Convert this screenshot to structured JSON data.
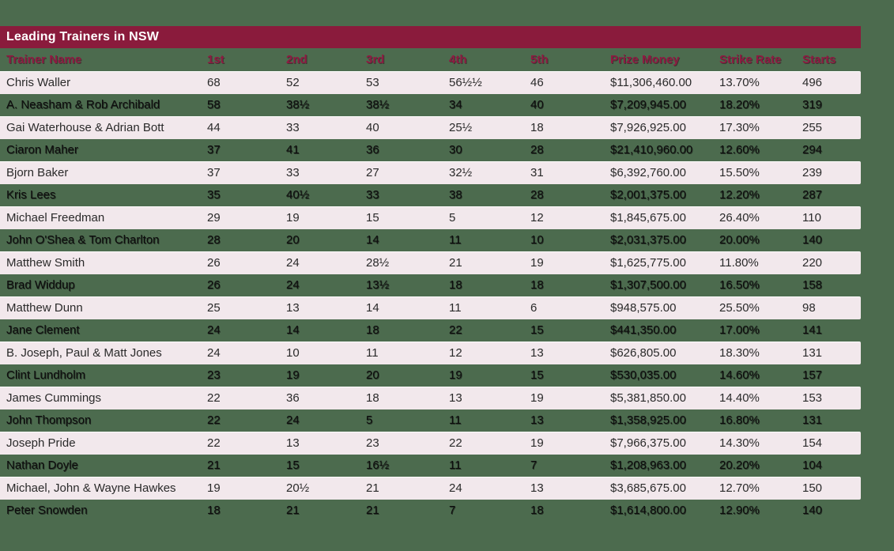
{
  "title": "Leading Trainers in NSW",
  "colors": {
    "page_background": "#4C6B4E",
    "title_bar_background": "#8A1B3C",
    "title_text": "#FFFFFF",
    "header_text": "#8E1B42",
    "row_alt_background": "#F2E8EC",
    "row_text": "#2A2A2A"
  },
  "chart_data": {
    "type": "table",
    "title": "Leading Trainers in NSW",
    "columns": [
      "Trainer Name",
      "1st",
      "2nd",
      "3rd",
      "4th",
      "5th",
      "Prize Money",
      "Strike Rate",
      "Starts"
    ],
    "rows": [
      [
        "Chris Waller",
        "68",
        "52",
        "53",
        "56½½",
        "46",
        "$11,306,460.00",
        "13.70%",
        "496"
      ],
      [
        "A. Neasham & Rob Archibald",
        "58",
        "38½",
        "38½",
        "34",
        "40",
        "$7,209,945.00",
        "18.20%",
        "319"
      ],
      [
        "Gai Waterhouse & Adrian Bott",
        "44",
        "33",
        "40",
        "25½",
        "18",
        "$7,926,925.00",
        "17.30%",
        "255"
      ],
      [
        "Ciaron Maher",
        "37",
        "41",
        "36",
        "30",
        "28",
        "$21,410,960.00",
        "12.60%",
        "294"
      ],
      [
        "Bjorn Baker",
        "37",
        "33",
        "27",
        "32½",
        "31",
        "$6,392,760.00",
        "15.50%",
        "239"
      ],
      [
        "Kris Lees",
        "35",
        "40½",
        "33",
        "38",
        "28",
        "$2,001,375.00",
        "12.20%",
        "287"
      ],
      [
        "Michael Freedman",
        "29",
        "19",
        "15",
        "5",
        "12",
        "$1,845,675.00",
        "26.40%",
        "110"
      ],
      [
        "John O'Shea & Tom Charlton",
        "28",
        "20",
        "14",
        "11",
        "10",
        "$2,031,375.00",
        "20.00%",
        "140"
      ],
      [
        "Matthew Smith",
        "26",
        "24",
        "28½",
        "21",
        "19",
        "$1,625,775.00",
        "11.80%",
        "220"
      ],
      [
        "Brad Widdup",
        "26",
        "24",
        "13½",
        "18",
        "18",
        "$1,307,500.00",
        "16.50%",
        "158"
      ],
      [
        "Matthew Dunn",
        "25",
        "13",
        "14",
        "11",
        "6",
        "$948,575.00",
        "25.50%",
        "98"
      ],
      [
        "Jane Clement",
        "24",
        "14",
        "18",
        "22",
        "15",
        "$441,350.00",
        "17.00%",
        "141"
      ],
      [
        "B. Joseph, Paul & Matt Jones",
        "24",
        "10",
        "11",
        "12",
        "13",
        "$626,805.00",
        "18.30%",
        "131"
      ],
      [
        "Clint Lundholm",
        "23",
        "19",
        "20",
        "19",
        "15",
        "$530,035.00",
        "14.60%",
        "157"
      ],
      [
        "James Cummings",
        "22",
        "36",
        "18",
        "13",
        "19",
        "$5,381,850.00",
        "14.40%",
        "153"
      ],
      [
        "John Thompson",
        "22",
        "24",
        "5",
        "11",
        "13",
        "$1,358,925.00",
        "16.80%",
        "131"
      ],
      [
        "Joseph Pride",
        "22",
        "13",
        "23",
        "22",
        "19",
        "$7,966,375.00",
        "14.30%",
        "154"
      ],
      [
        "Nathan Doyle",
        "21",
        "15",
        "16½",
        "11",
        "7",
        "$1,208,963.00",
        "20.20%",
        "104"
      ],
      [
        "Michael, John & Wayne Hawkes",
        "19",
        "20½",
        "21",
        "24",
        "13",
        "$3,685,675.00",
        "12.70%",
        "150"
      ],
      [
        "Peter Snowden",
        "18",
        "21",
        "21",
        "7",
        "18",
        "$1,614,800.00",
        "12.90%",
        "140"
      ]
    ]
  }
}
